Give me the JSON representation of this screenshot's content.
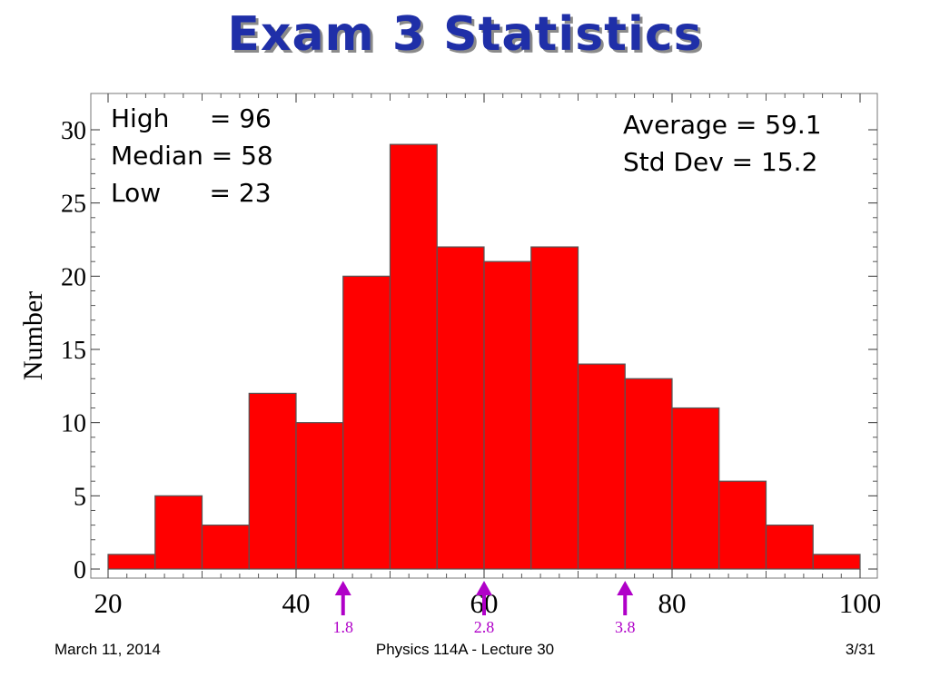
{
  "slide": {
    "title": "Exam 3 Statistics",
    "footer_left": "March 11, 2014",
    "footer_center": "Physics 114A  -  Lecture 30",
    "footer_right": "3/31"
  },
  "stats_left": [
    "High     = 96",
    "Median = 58",
    "Low      = 23"
  ],
  "stats_right": [
    "Average = 59.1",
    "Std Dev = 15.2"
  ],
  "colors": {
    "title": "#1f2fa8",
    "bar_fill": "#ff0000",
    "bar_stroke": "#555555",
    "marker": "#b000c8"
  },
  "chart_data": {
    "type": "bar",
    "bin_edges": [
      20,
      25,
      30,
      35,
      40,
      45,
      50,
      55,
      60,
      65,
      70,
      75,
      80,
      85,
      90,
      95,
      100
    ],
    "values": [
      1,
      5,
      3,
      12,
      10,
      20,
      29,
      22,
      21,
      22,
      14,
      13,
      11,
      6,
      3,
      1
    ],
    "xlim": [
      20,
      100
    ],
    "ylim": [
      0,
      31
    ],
    "xticks": [
      20,
      40,
      60,
      80,
      100
    ],
    "yticks": [
      0,
      5,
      10,
      15,
      20,
      25,
      30
    ],
    "ylabel": "Number",
    "xlabel": "",
    "markers": [
      {
        "x": 45,
        "label": "1.8"
      },
      {
        "x": 60,
        "label": "2.8"
      },
      {
        "x": 75,
        "label": "3.8"
      }
    ]
  }
}
